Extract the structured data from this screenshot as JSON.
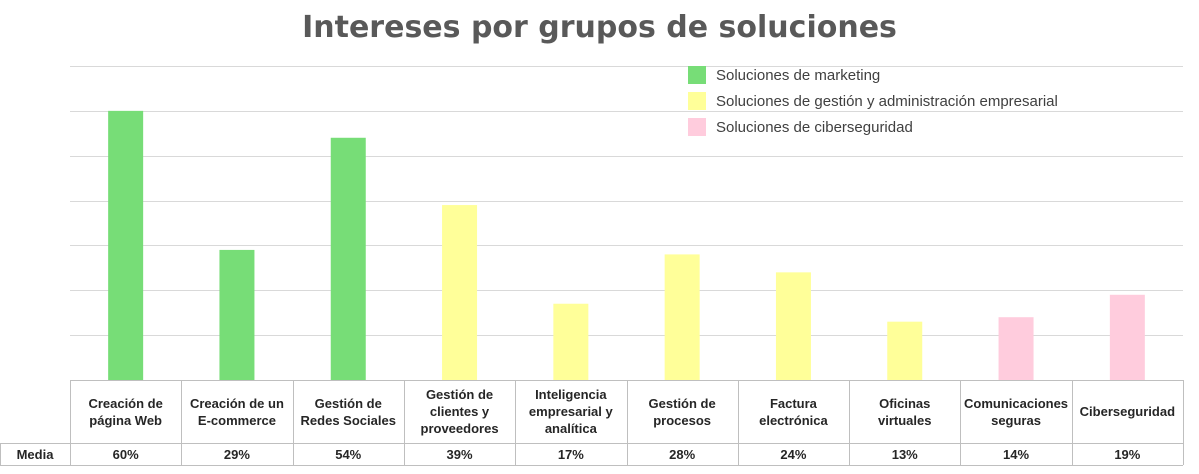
{
  "chart_data": {
    "type": "bar",
    "title": "Intereses por grupos de soluciones",
    "categories": [
      "Creación de página Web",
      "Creación de un E-commerce",
      "Gestión de Redes Sociales",
      "Gestión de clientes y proveedores",
      "Inteligencia empresarial y analítica",
      "Gestión de procesos",
      "Factura electrónica",
      "Oficinas virtuales",
      "Comunicaciones seguras",
      "Ciberseguridad"
    ],
    "values": [
      60,
      29,
      54,
      39,
      17,
      28,
      24,
      13,
      14,
      19
    ],
    "value_labels": [
      "60%",
      "29%",
      "54%",
      "39%",
      "17%",
      "28%",
      "24%",
      "13%",
      "14%",
      "19%"
    ],
    "groups": [
      0,
      0,
      0,
      1,
      1,
      1,
      1,
      1,
      2,
      2
    ],
    "series": [
      {
        "name": "Soluciones de marketing",
        "color": "#77dd77"
      },
      {
        "name": "Soluciones de gestión y administración empresarial",
        "color": "#ffff99"
      },
      {
        "name": "Soluciones de ciberseguridad",
        "color": "#ffccdd"
      }
    ],
    "row_header": "Media",
    "ylim": [
      0,
      70
    ],
    "grid": true,
    "legend_position": "top-right",
    "xlabel": "",
    "ylabel": ""
  }
}
